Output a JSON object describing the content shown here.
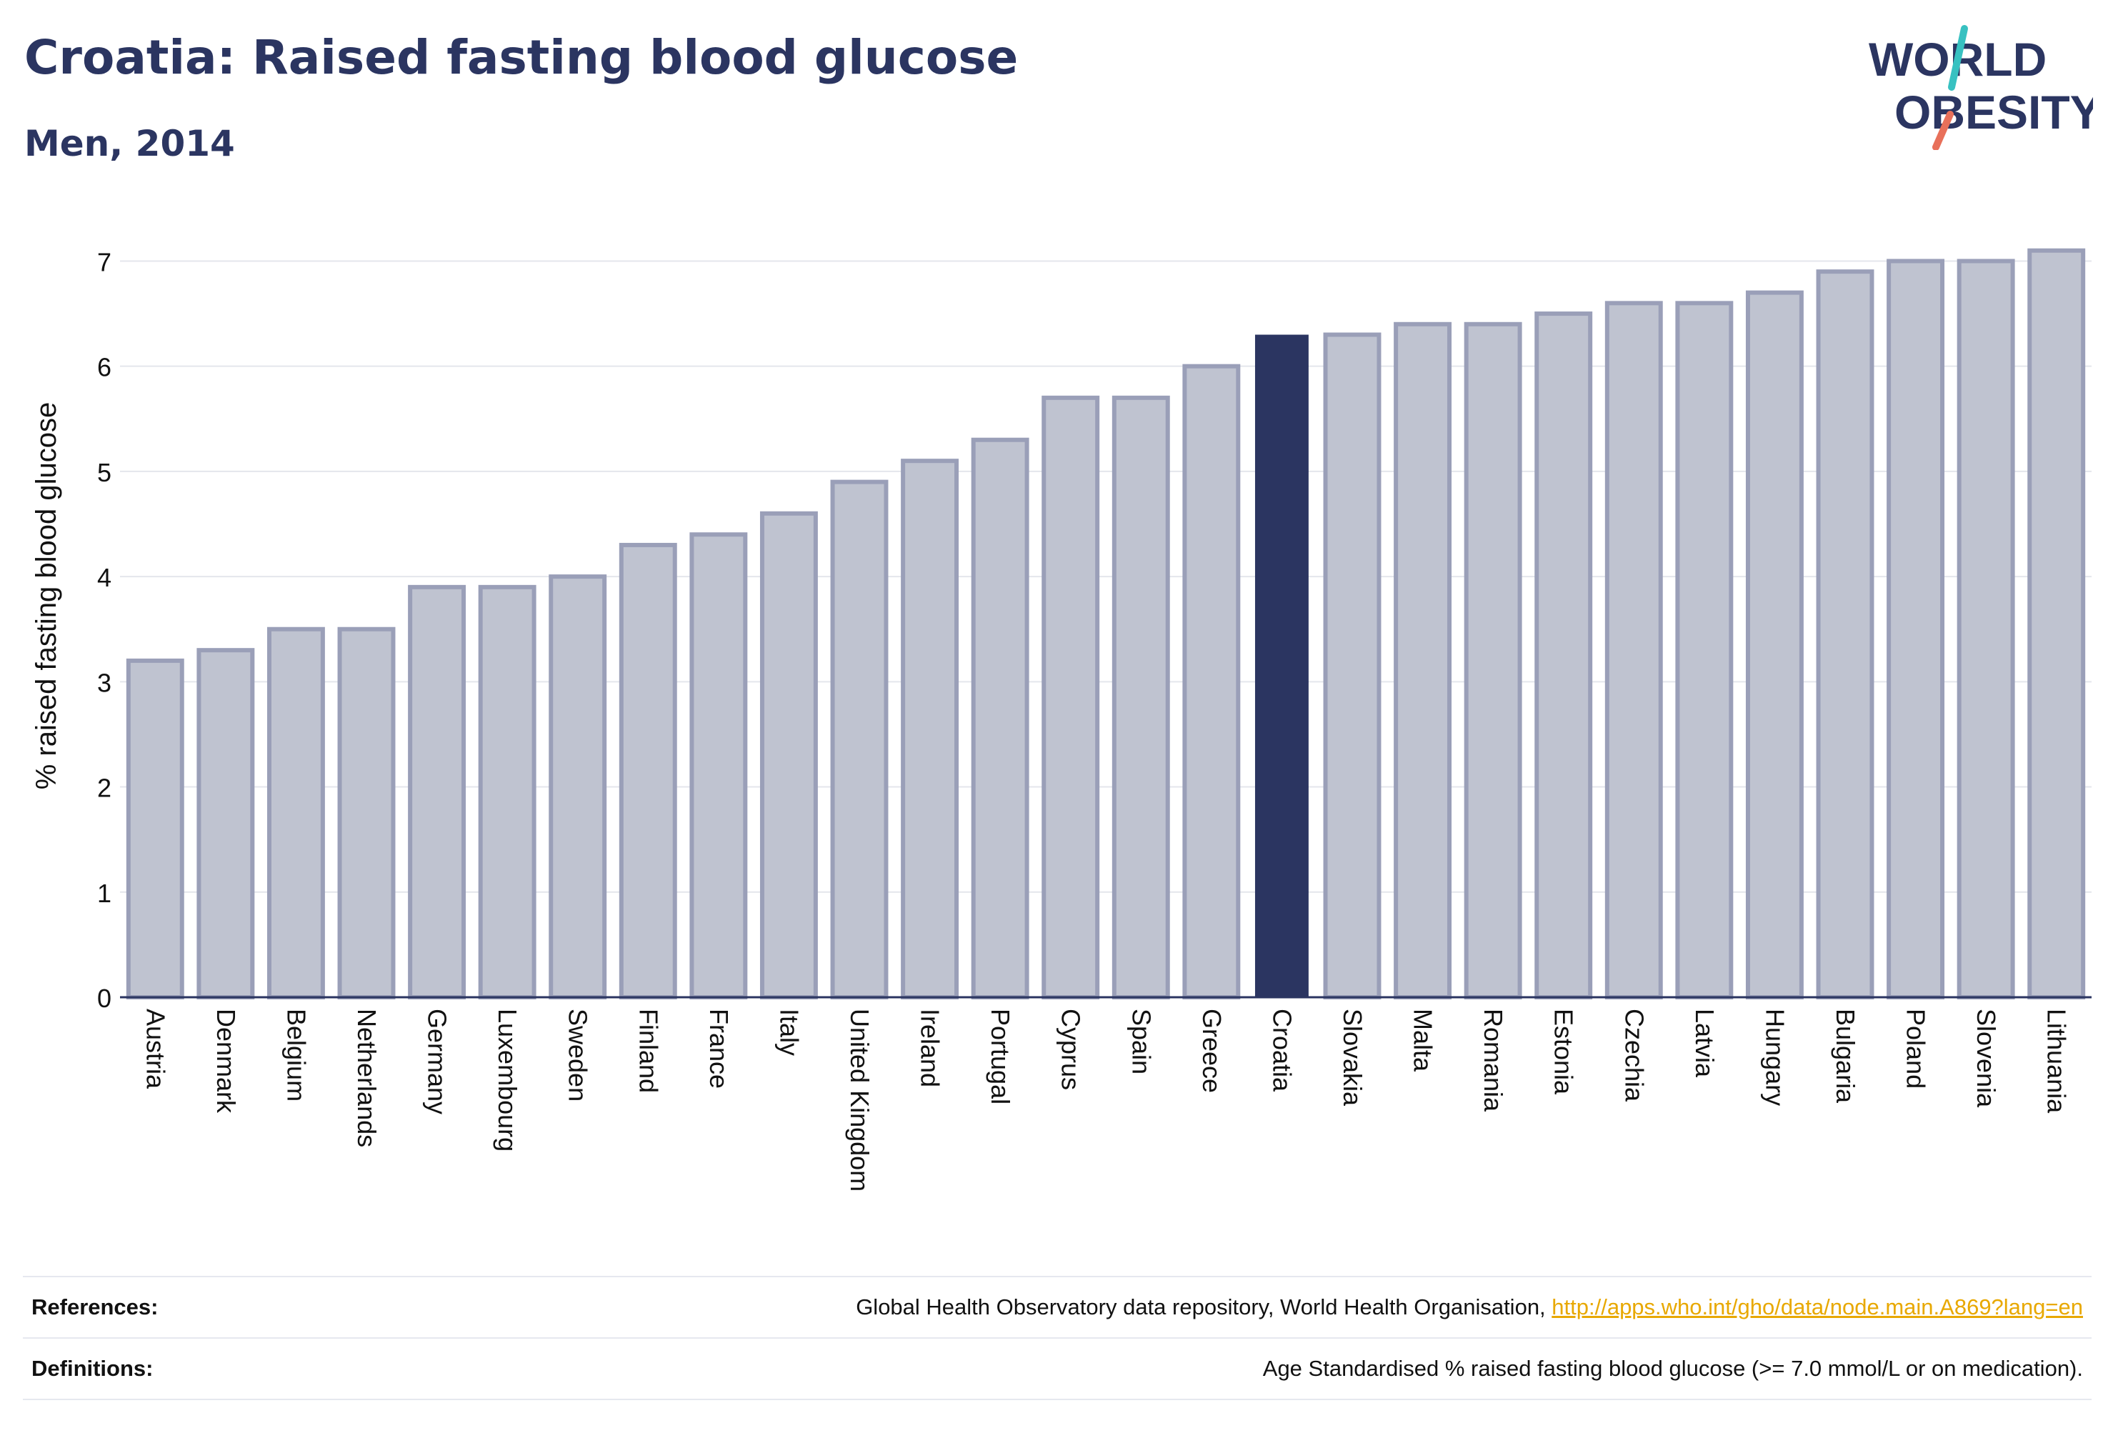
{
  "header": {
    "title": "Croatia: Raised fasting blood glucose",
    "subtitle": "Men, 2014"
  },
  "logo": {
    "line1": "WORLD",
    "line2": "OBESITY"
  },
  "colors": {
    "highlight": "#2b3561",
    "bar_fill": "#bfc3d0",
    "bar_stroke": "#9a9fb8",
    "logo_teal": "#38c1c1",
    "logo_coral": "#e8705a",
    "link": "#e8a800"
  },
  "chart_data": {
    "type": "bar",
    "title": "Croatia: Raised fasting blood glucose",
    "subtitle": "Men, 2014",
    "xlabel": "",
    "ylabel": "% raised fasting blood glucose",
    "ylim": [
      0,
      7.2
    ],
    "yticks": [
      0,
      1,
      2,
      3,
      4,
      5,
      6,
      7
    ],
    "grid": true,
    "highlight": "Croatia",
    "categories": [
      "Austria",
      "Denmark",
      "Belgium",
      "Netherlands",
      "Germany",
      "Luxembourg",
      "Sweden",
      "Finland",
      "France",
      "Italy",
      "United Kingdom",
      "Ireland",
      "Portugal",
      "Cyprus",
      "Spain",
      "Greece",
      "Croatia",
      "Slovakia",
      "Malta",
      "Romania",
      "Estonia",
      "Czechia",
      "Latvia",
      "Hungary",
      "Bulgaria",
      "Poland",
      "Slovenia",
      "Lithuania"
    ],
    "values": [
      3.2,
      3.3,
      3.5,
      3.5,
      3.9,
      3.9,
      4.0,
      4.3,
      4.4,
      4.6,
      4.9,
      5.1,
      5.3,
      5.7,
      5.7,
      6.0,
      6.3,
      6.3,
      6.4,
      6.4,
      6.5,
      6.6,
      6.6,
      6.7,
      6.9,
      7.0,
      7.0,
      7.1
    ]
  },
  "footer": {
    "references_label": "References:",
    "references_text": "Global Health Observatory data repository, World Health Organisation, ",
    "references_link": "http://apps.who.int/gho/data/node.main.A869?lang=en",
    "definitions_label": "Definitions:",
    "definitions_text": "Age Standardised % raised fasting blood glucose (>= 7.0 mmol/L or on medication)."
  }
}
